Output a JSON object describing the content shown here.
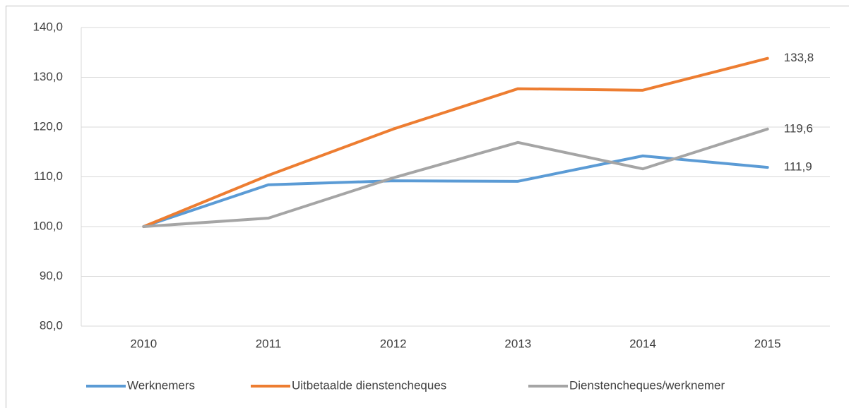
{
  "chart_data": {
    "type": "line",
    "categories": [
      "2010",
      "2011",
      "2012",
      "2013",
      "2014",
      "2015"
    ],
    "series": [
      {
        "name": "Werknemers",
        "color": "#5b9bd5",
        "values": [
          100,
          108.4,
          109.2,
          109.1,
          114.2,
          111.9
        ],
        "value_labels": [
          null,
          null,
          null,
          null,
          null,
          "111,9"
        ]
      },
      {
        "name": "Uitbetaalde dienstencheques",
        "color": "#ed7d31",
        "values": [
          100,
          110.3,
          119.6,
          127.7,
          127.4,
          133.8
        ],
        "value_labels": [
          null,
          null,
          null,
          null,
          null,
          "133,8"
        ]
      },
      {
        "name": "Dienstencheques/werknemer",
        "color": "#a5a5a5",
        "values": [
          100,
          101.7,
          109.8,
          116.9,
          111.6,
          119.6
        ],
        "value_labels": [
          null,
          null,
          null,
          null,
          null,
          "119,6"
        ]
      }
    ],
    "ylim": [
      80,
      140
    ],
    "yticks": [
      {
        "value": 80,
        "label": "80,0"
      },
      {
        "value": 90,
        "label": "90,0"
      },
      {
        "value": 100,
        "label": "100,0"
      },
      {
        "value": 110,
        "label": "110,0"
      },
      {
        "value": 120,
        "label": "120,0"
      },
      {
        "value": 130,
        "label": "130,0"
      },
      {
        "value": 140,
        "label": "140,0"
      }
    ],
    "grid": true,
    "legend": "bottom"
  }
}
